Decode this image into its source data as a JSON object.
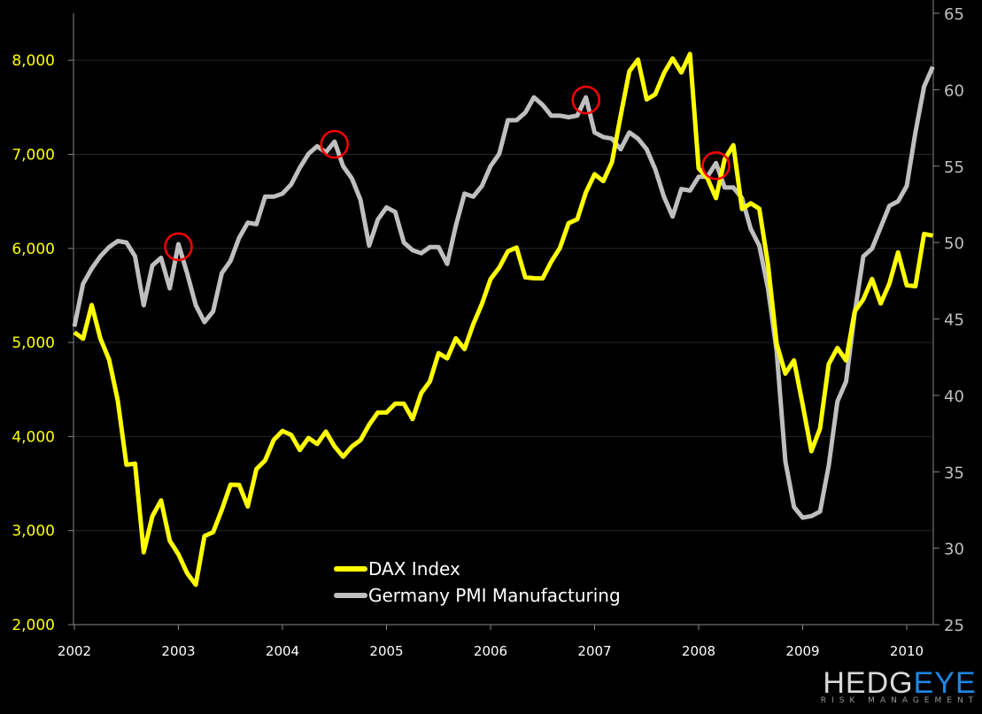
{
  "chart_data": {
    "type": "line",
    "title": "",
    "x_start": "2002-01",
    "frequency": "monthly",
    "x_ticks": [
      "2002",
      "2003",
      "2004",
      "2005",
      "2006",
      "2007",
      "2008",
      "2009",
      "2010"
    ],
    "left_axis": {
      "ylim": [
        2000,
        8500
      ],
      "ticks": [
        "2,000",
        "3,000",
        "4,000",
        "5,000",
        "6,000",
        "7,000",
        "8,000"
      ],
      "tick_values": [
        2000,
        3000,
        4000,
        5000,
        6000,
        7000,
        8000
      ],
      "color": "#ffff00"
    },
    "right_axis": {
      "ylim": [
        25,
        65
      ],
      "ticks": [
        "25",
        "30",
        "35",
        "40",
        "45",
        "50",
        "55",
        "60",
        "65"
      ],
      "tick_values": [
        25,
        30,
        35,
        40,
        45,
        50,
        55,
        60,
        65
      ],
      "color": "#bfbfbf"
    },
    "grid": true,
    "legend_position": "bottom-center",
    "series": [
      {
        "name": "DAX Index",
        "axis": "left",
        "color": "#ffff00",
        "values": [
          5108,
          5039,
          5398,
          5041,
          4818,
          4383,
          3700,
          3712,
          2769,
          3153,
          3321,
          2893,
          2748,
          2548,
          2424,
          2942,
          2983,
          3221,
          3487,
          3485,
          3257,
          3655,
          3746,
          3965,
          4059,
          4018,
          3857,
          3985,
          3921,
          4053,
          3895,
          3785,
          3893,
          3961,
          4126,
          4256,
          4255,
          4350,
          4349,
          4185,
          4461,
          4587,
          4887,
          4830,
          5044,
          4929,
          5193,
          5408,
          5674,
          5796,
          5970,
          6009,
          5693,
          5683,
          5682,
          5859,
          6004,
          6268,
          6309,
          6597,
          6789,
          6716,
          6917,
          7409,
          7883,
          8007,
          7584,
          7638,
          7862,
          8020,
          7871,
          8067,
          6852,
          6748,
          6535,
          6949,
          7097,
          6418,
          6479,
          6422,
          5831,
          4988,
          4669,
          4810,
          4338,
          3844,
          4085,
          4770,
          4941,
          4809,
          5332,
          5459,
          5675,
          5415,
          5625,
          5957,
          5608,
          5598,
          6154,
          6136
        ]
      },
      {
        "name": "Germany PMI Manufacturing",
        "axis": "right",
        "color": "#bfbfbf",
        "values": [
          44.5,
          47.3,
          48.3,
          49.1,
          49.7,
          50.1,
          50.0,
          49.1,
          45.9,
          48.5,
          49.0,
          47.0,
          49.9,
          48.0,
          45.9,
          44.8,
          45.5,
          48.0,
          48.8,
          50.3,
          51.3,
          51.2,
          53.0,
          53.0,
          53.2,
          53.8,
          54.9,
          55.8,
          56.3,
          55.9,
          56.6,
          55.0,
          54.2,
          52.8,
          49.8,
          51.5,
          52.3,
          52.0,
          50.0,
          49.5,
          49.3,
          49.7,
          49.7,
          48.6,
          51.1,
          53.2,
          53.0,
          53.7,
          55.0,
          55.8,
          58.0,
          58.0,
          58.5,
          59.5,
          59.0,
          58.3,
          58.3,
          58.2,
          58.3,
          59.5,
          57.2,
          56.9,
          56.8,
          56.1,
          57.2,
          56.8,
          56.1,
          54.8,
          53.0,
          51.7,
          53.5,
          53.4,
          54.3,
          54.3,
          55.2,
          53.6,
          53.6,
          52.9,
          50.9,
          49.8,
          47.0,
          42.9,
          35.7,
          32.7,
          32.0,
          32.1,
          32.4,
          35.4,
          39.6,
          40.9,
          45.4,
          49.1,
          49.6,
          51.0,
          52.4,
          52.7,
          53.7,
          57.2,
          60.2,
          61.5
        ]
      }
    ],
    "annotations": {
      "type": "red-circle",
      "series": "Germany PMI Manufacturing",
      "months": [
        "2003-01",
        "2004-07",
        "2006-12",
        "2008-03"
      ],
      "color": "#ff0000"
    }
  },
  "logo": {
    "text_white": "HEDG",
    "text_blue": "EYE",
    "tagline": "RISK MANAGEMENT"
  }
}
